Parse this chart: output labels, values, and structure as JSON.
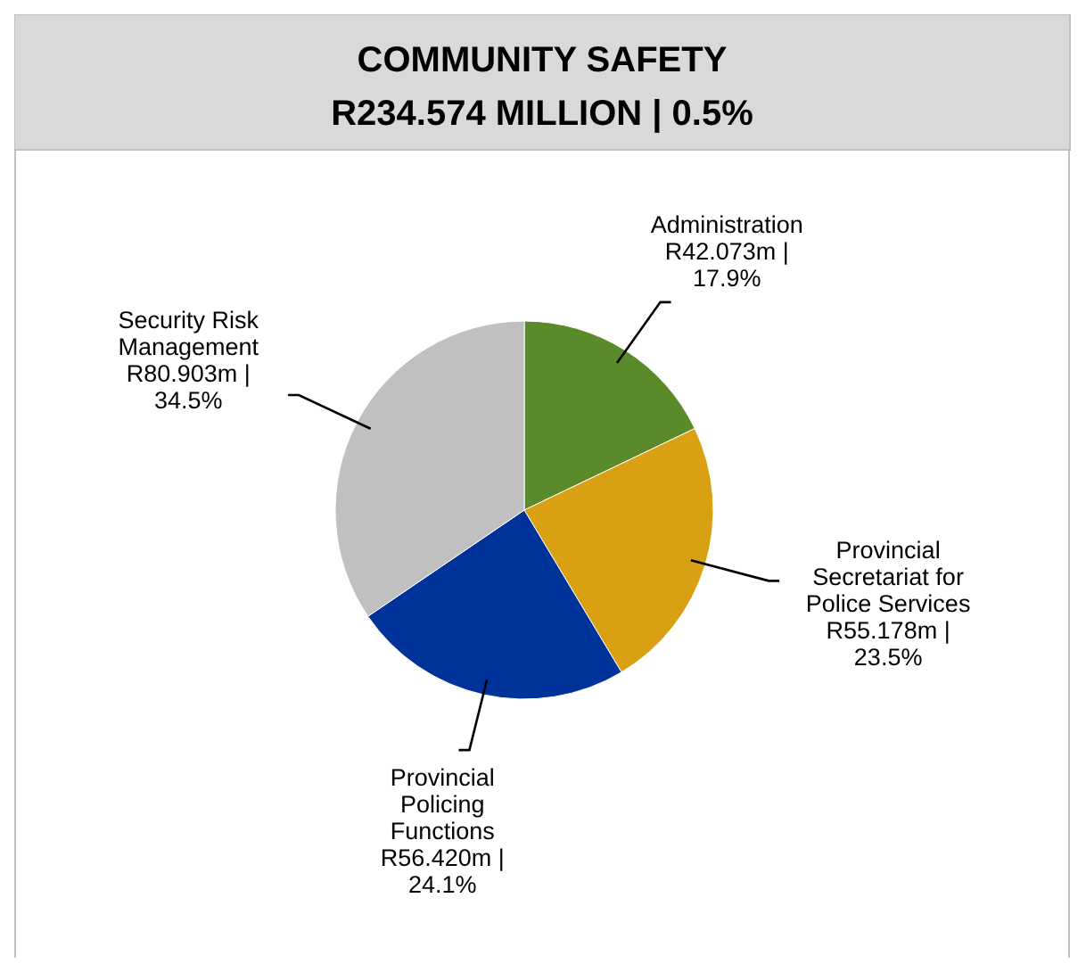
{
  "chart_data": {
    "type": "pie",
    "title": "COMMUNITY SAFETY",
    "subtitle": "R234.574 MILLION | 0.5%",
    "categories": [
      "Administration",
      "Provincial Secretariat for Police Services",
      "Provincial Policing Functions",
      "Security Risk Management"
    ],
    "values": [
      17.9,
      23.5,
      24.1,
      34.5
    ],
    "colors": [
      "#5b8a2a",
      "#d9a014",
      "#003399",
      "#c0c0c0"
    ],
    "value_labels": [
      "R42.073m | 17.9%",
      "R55.178m | 23.5%",
      "R56.420m | 24.1%",
      "R80.903m | 34.5%"
    ]
  }
}
